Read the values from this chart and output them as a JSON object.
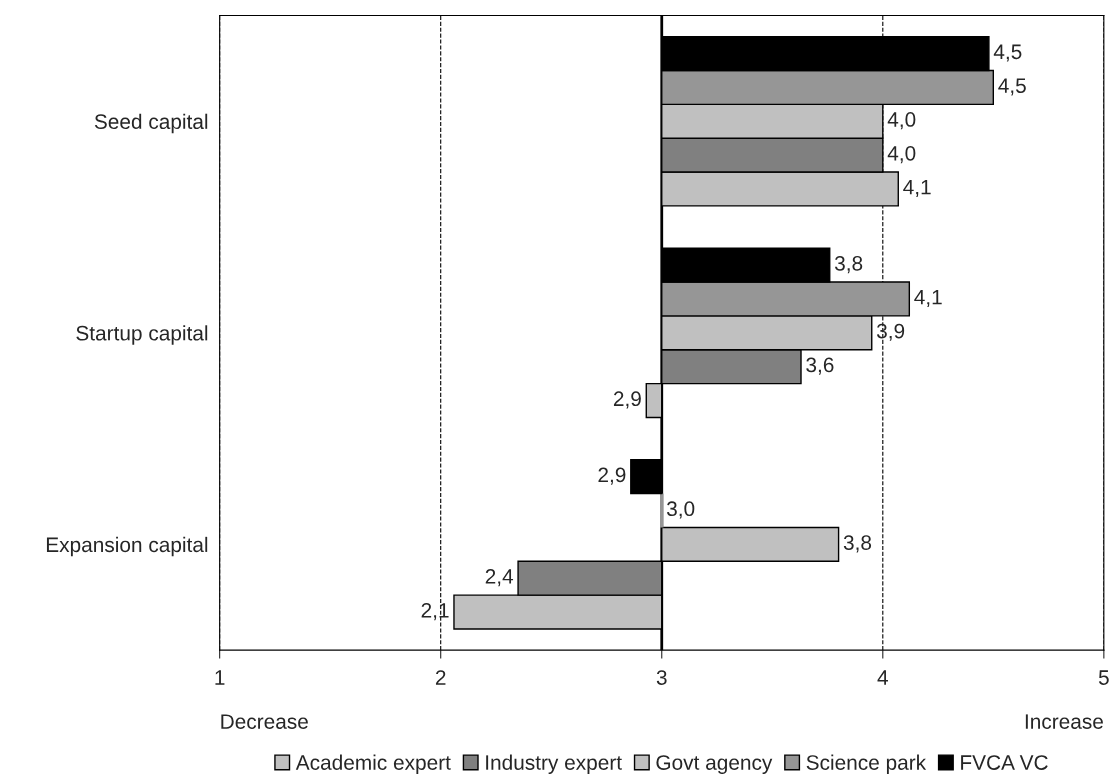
{
  "chart_data": {
    "type": "bar",
    "orientation": "horizontal",
    "categories": [
      "Seed capital",
      "Startup capital",
      "Expansion capital"
    ],
    "series": [
      {
        "name": "Academic expert",
        "color": "#c0c0c0",
        "base": [
          3,
          3,
          3
        ],
        "values": [
          1.07,
          -0.07,
          -0.94
        ],
        "value_labels": [
          "4,1",
          "2,9",
          "2,1"
        ]
      },
      {
        "name": "Industry expert",
        "color": "#808080",
        "base": [
          3,
          3,
          3
        ],
        "values": [
          1.0,
          0.63,
          -0.65
        ],
        "value_labels": [
          "4,0",
          "3,6",
          "2,4"
        ]
      },
      {
        "name": "Govt agency",
        "color": "#c0c0c0",
        "base": [
          3,
          3,
          3
        ],
        "values": [
          1.0,
          0.95,
          0.8
        ],
        "value_labels": [
          "4,0",
          "3,9",
          "3,8"
        ]
      },
      {
        "name": "Science park",
        "color": "#969696",
        "base": [
          3,
          3,
          3
        ],
        "values": [
          1.5,
          1.12,
          0.0
        ],
        "value_labels": [
          "4,5",
          "4,1",
          "3,0"
        ]
      },
      {
        "name": "FVCA VC",
        "color": "#000000",
        "base": [
          3,
          3,
          3
        ],
        "values": [
          1.48,
          0.76,
          -0.14
        ],
        "value_labels": [
          "4,5",
          "3,8",
          "2,9"
        ]
      }
    ],
    "xlim": [
      1,
      5
    ],
    "xticks": [
      1,
      2,
      3,
      4,
      5
    ],
    "grid": "x",
    "ref_lines": [
      {
        "axis": "x",
        "value": 3,
        "color": "#000000",
        "line_style": "solid"
      }
    ],
    "annotations": [
      "Decrease",
      "Increase"
    ],
    "legend": "bottom"
  }
}
